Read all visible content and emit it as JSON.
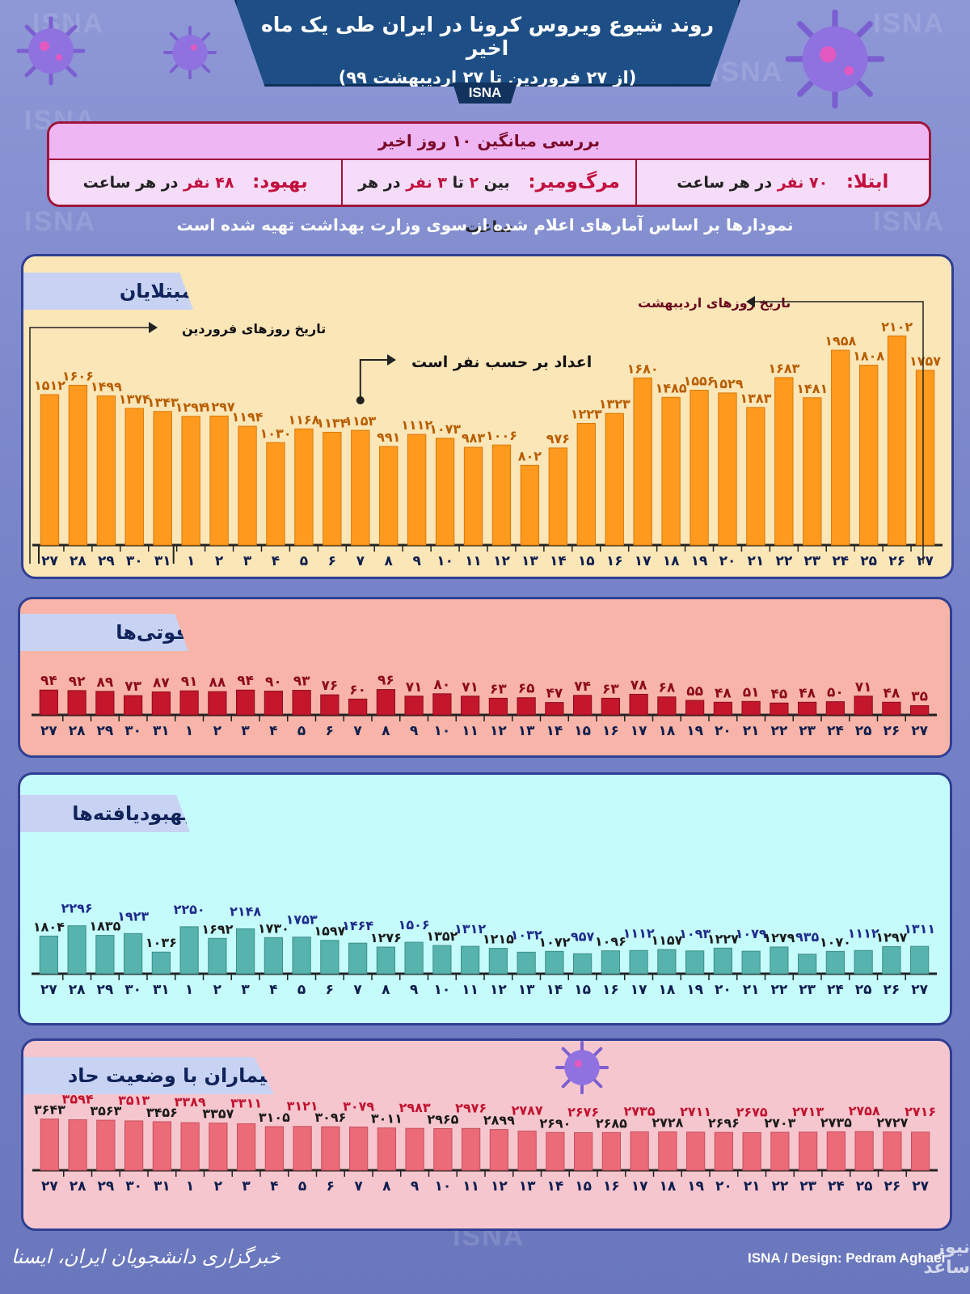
{
  "header": {
    "title": "روند شیوع ویروس کرونا در ایران طی یک ماه اخیر",
    "subtitle": "(از ۲۷ فروردین تا ۲۷ اردیبهشت ۹۹)",
    "logo": "ISNA",
    "watermark": "ISNA"
  },
  "summary": {
    "title": "بررسی میانگین ۱۰ روز اخیر",
    "infection_label": "ابتلا:",
    "infection_num": "۷۰ نفر",
    "infection_rest": "در هر ساعت",
    "death_label": "مرگ‌ومیر:",
    "death_pre": "بین",
    "death_num1": "۲",
    "death_mid": "تا",
    "death_num2": "۳ نفر",
    "death_rest": "در هر ساعت",
    "recovery_label": "بهبود:",
    "recovery_num": "۴۸ نفر",
    "recovery_rest": "در هر ساعت"
  },
  "note": "نمودارها بر اساس آمارهای اعلام شده از سوی وزارت بهداشت تهیه شده است",
  "annotations": {
    "farvardin": "تاریخ روزهای فروردین",
    "ordibehesht": "تاریخ روزهای اردیبهشت",
    "unit": "اعداد بر حسب نفر است"
  },
  "colors": {
    "infected": "#ff9a1f",
    "deaths": "#c4172c",
    "recovered": "#56b3ae",
    "critical": "#ec6b78"
  },
  "footer": {
    "left": "خبرگزاری دانشجویان ایران، ایسنا",
    "right": "ISNA / Design: Pedram Aghaei",
    "mark": "نیوز ساعد"
  },
  "chart_data": [
    {
      "type": "bar",
      "title": "مبتلایان",
      "categories": [
        "۲۷",
        "۲۸",
        "۲۹",
        "۳۰",
        "۳۱",
        "۱",
        "۲",
        "۳",
        "۴",
        "۵",
        "۶",
        "۷",
        "۸",
        "۹",
        "۱۰",
        "۱۱",
        "۱۲",
        "۱۳",
        "۱۴",
        "۱۵",
        "۱۶",
        "۱۷",
        "۱۸",
        "۱۹",
        "۲۰",
        "۲۱",
        "۲۲",
        "۲۳",
        "۲۴",
        "۲۵",
        "۲۶",
        "۲۷"
      ],
      "values": [
        1512,
        1606,
        1499,
        1374,
        1343,
        1294,
        1297,
        1194,
        1030,
        1168,
        1134,
        1153,
        991,
        1112,
        1073,
        983,
        1006,
        802,
        976,
        1223,
        1323,
        1680,
        1485,
        1556,
        1529,
        1383,
        1683,
        1481,
        1958,
        1808,
        2102,
        1757
      ],
      "ylim": [
        0,
        2300
      ]
    },
    {
      "type": "bar",
      "title": "فوتی‌ها",
      "categories": [
        "۲۷",
        "۲۸",
        "۲۹",
        "۳۰",
        "۳۱",
        "۱",
        "۲",
        "۳",
        "۴",
        "۵",
        "۶",
        "۷",
        "۸",
        "۹",
        "۱۰",
        "۱۱",
        "۱۲",
        "۱۳",
        "۱۴",
        "۱۵",
        "۱۶",
        "۱۷",
        "۱۸",
        "۱۹",
        "۲۰",
        "۲۱",
        "۲۲",
        "۲۳",
        "۲۴",
        "۲۵",
        "۲۶",
        "۲۷"
      ],
      "values": [
        94,
        92,
        89,
        73,
        87,
        91,
        88,
        94,
        90,
        93,
        76,
        60,
        96,
        71,
        80,
        71,
        63,
        65,
        47,
        74,
        63,
        78,
        68,
        55,
        48,
        51,
        45,
        48,
        50,
        71,
        48,
        35
      ],
      "ylim": [
        0,
        110
      ]
    },
    {
      "type": "bar",
      "title": "بهبودیافته‌ها",
      "categories": [
        "۲۷",
        "۲۸",
        "۲۹",
        "۳۰",
        "۳۱",
        "۱",
        "۲",
        "۳",
        "۴",
        "۵",
        "۶",
        "۷",
        "۸",
        "۹",
        "۱۰",
        "۱۱",
        "۱۲",
        "۱۳",
        "۱۴",
        "۱۵",
        "۱۶",
        "۱۷",
        "۱۸",
        "۱۹",
        "۲۰",
        "۲۱",
        "۲۲",
        "۲۳",
        "۲۴",
        "۲۵",
        "۲۶",
        "۲۷"
      ],
      "values": [
        1804,
        2296,
        1835,
        1923,
        1036,
        2250,
        1692,
        2148,
        1730,
        1753,
        1597,
        1464,
        1276,
        1506,
        1352,
        1312,
        1215,
        1032,
        1072,
        957,
        1096,
        1112,
        1157,
        1093,
        1227,
        1079,
        1279,
        935,
        1070,
        1112,
        1297,
        1311
      ],
      "ylim": [
        0,
        2400
      ]
    },
    {
      "type": "bar",
      "title": "بیماران با وضعیت حاد",
      "categories": [
        "۲۷",
        "۲۸",
        "۲۹",
        "۳۰",
        "۳۱",
        "۱",
        "۲",
        "۳",
        "۴",
        "۵",
        "۶",
        "۷",
        "۸",
        "۹",
        "۱۰",
        "۱۱",
        "۱۲",
        "۱۳",
        "۱۴",
        "۱۵",
        "۱۶",
        "۱۷",
        "۱۸",
        "۱۹",
        "۲۰",
        "۲۱",
        "۲۲",
        "۲۳",
        "۲۴",
        "۲۵",
        "۲۶",
        "۲۷"
      ],
      "values": [
        3643,
        3594,
        3563,
        3513,
        3456,
        3389,
        3357,
        3311,
        3105,
        3121,
        3096,
        3079,
        3011,
        2983,
        2965,
        2976,
        2899,
        2787,
        2690,
        2676,
        2685,
        2735,
        2728,
        2711,
        2696,
        2675,
        2703,
        2713,
        2735,
        2758,
        2727,
        2716
      ],
      "ylim": [
        0,
        3800
      ]
    }
  ]
}
